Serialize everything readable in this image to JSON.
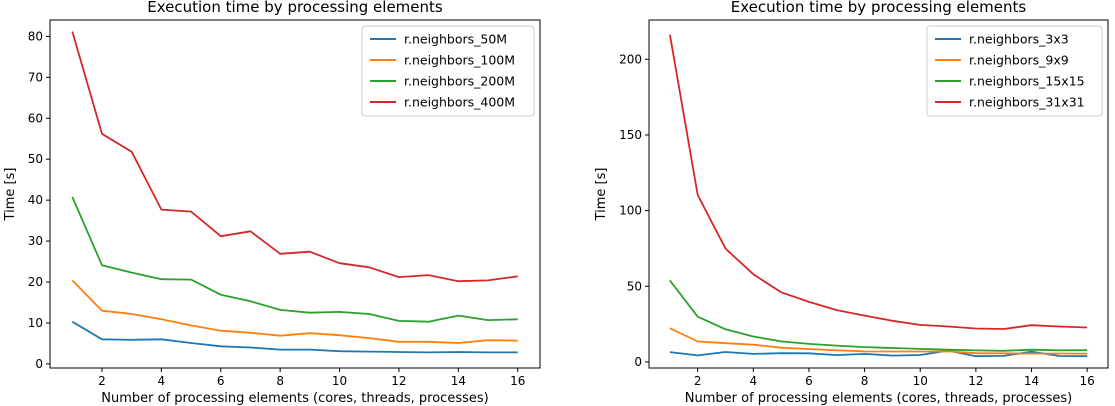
{
  "colors": {
    "blue": "#1f77b4",
    "orange": "#ff7f0e",
    "green": "#2ca02c",
    "red": "#d62728"
  },
  "chart_data": [
    {
      "type": "line",
      "title": "Execution time by processing elements",
      "xlabel": "Number of processing elements (cores, threads, processes)",
      "ylabel": "Time [s]",
      "xlim": [
        0.25,
        16.75
      ],
      "ylim": [
        -1,
        84
      ],
      "xticks": [
        2,
        4,
        6,
        8,
        10,
        12,
        14,
        16
      ],
      "yticks": [
        0,
        10,
        20,
        30,
        40,
        50,
        60,
        70,
        80
      ],
      "legend_position": "top-right",
      "x": [
        1,
        2,
        3,
        4,
        5,
        6,
        7,
        8,
        9,
        10,
        11,
        12,
        13,
        14,
        15,
        16
      ],
      "series": [
        {
          "name": "r.neighbors_50M",
          "color": "#1f77b4",
          "values": [
            10.3,
            6.0,
            5.9,
            6.0,
            5.1,
            4.3,
            4.0,
            3.5,
            3.5,
            3.1,
            3.0,
            2.9,
            2.8,
            2.9,
            2.8,
            2.8
          ]
        },
        {
          "name": "r.neighbors_100M",
          "color": "#ff7f0e",
          "values": [
            20.4,
            13.0,
            12.2,
            10.9,
            9.4,
            8.1,
            7.6,
            6.9,
            7.5,
            7.0,
            6.3,
            5.4,
            5.4,
            5.1,
            5.8,
            5.7
          ]
        },
        {
          "name": "r.neighbors_200M",
          "color": "#2ca02c",
          "values": [
            40.8,
            24.1,
            22.3,
            20.7,
            20.6,
            16.9,
            15.3,
            13.2,
            12.5,
            12.7,
            12.2,
            10.5,
            10.3,
            11.8,
            10.7,
            10.9
          ]
        },
        {
          "name": "r.neighbors_400M",
          "color": "#d62728",
          "values": [
            81.2,
            56.2,
            51.8,
            37.7,
            37.2,
            31.2,
            32.4,
            26.9,
            27.4,
            24.6,
            23.6,
            21.2,
            21.7,
            20.2,
            20.4,
            21.4
          ]
        }
      ]
    },
    {
      "type": "line",
      "title": "Execution time by processing elements",
      "xlabel": "Number of processing elements (cores, threads, processes)",
      "ylabel": "Time [s]",
      "xlim": [
        0.25,
        16.75
      ],
      "ylim": [
        -4,
        226
      ],
      "xticks": [
        2,
        4,
        6,
        8,
        10,
        12,
        14,
        16
      ],
      "yticks": [
        0,
        50,
        100,
        150,
        200
      ],
      "legend_position": "top-right",
      "x": [
        1,
        2,
        3,
        4,
        5,
        6,
        7,
        8,
        9,
        10,
        11,
        12,
        13,
        14,
        15,
        16
      ],
      "series": [
        {
          "name": "r.neighbors_3x3",
          "color": "#1f77b4",
          "values": [
            6.5,
            4.3,
            6.6,
            5.3,
            5.8,
            5.7,
            4.5,
            5.3,
            4.2,
            4.6,
            7.5,
            3.8,
            4.0,
            6.8,
            3.9,
            3.8
          ]
        },
        {
          "name": "r.neighbors_9x9",
          "color": "#ff7f0e",
          "values": [
            22.3,
            13.5,
            12.4,
            11.4,
            9.4,
            8.5,
            7.7,
            7.0,
            6.9,
            6.9,
            7.0,
            5.8,
            5.7,
            5.5,
            5.6,
            5.5
          ]
        },
        {
          "name": "r.neighbors_15x15",
          "color": "#2ca02c",
          "values": [
            53.9,
            29.9,
            21.6,
            16.8,
            13.6,
            11.9,
            10.8,
            9.8,
            9.2,
            8.6,
            8.1,
            7.6,
            7.4,
            8.1,
            7.7,
            7.8
          ]
        },
        {
          "name": "r.neighbors_31x31",
          "color": "#d62728",
          "values": [
            216.3,
            110.4,
            74.9,
            58.0,
            46.0,
            39.7,
            34.3,
            30.6,
            27.2,
            24.5,
            23.4,
            22.1,
            21.8,
            24.3,
            23.4,
            22.8
          ]
        }
      ]
    }
  ]
}
